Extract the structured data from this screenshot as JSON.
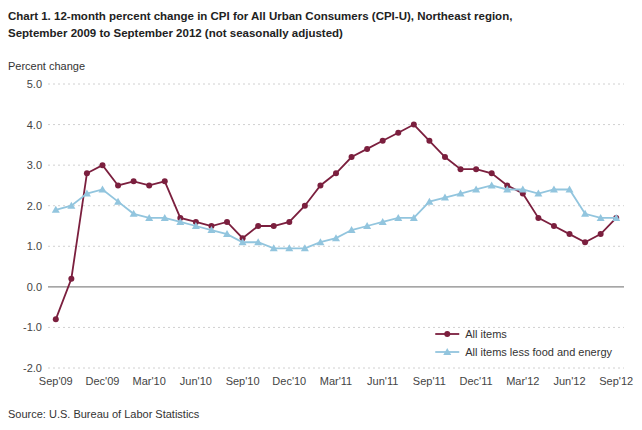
{
  "chart_data": {
    "type": "line",
    "title": "Chart 1. 12-month percent change in CPI for All Urban Consumers (CPI-U), Northeast region,",
    "subtitle": "September 2009 to September 2012 (not seasonally adjusted)",
    "y_label": "Percent change",
    "annotations": [
      "Source: U.S. Bureau of Labor Statistics"
    ],
    "categories": [
      "Sep'09",
      null,
      null,
      "Dec'09",
      null,
      null,
      "Mar'10",
      null,
      null,
      "Jun'10",
      null,
      null,
      "Sep'10",
      null,
      null,
      "Dec'10",
      null,
      null,
      "Mar'11",
      null,
      null,
      "Jun'11",
      null,
      null,
      "Sep'11",
      null,
      null,
      "Dec'11",
      null,
      null,
      "Mar'12",
      null,
      null,
      "Jun'12",
      null,
      null,
      "Sep'12"
    ],
    "series": [
      {
        "name": "All items",
        "color": "#7B1F3E",
        "marker": "circle",
        "values": [
          -0.8,
          0.2,
          2.8,
          3.0,
          2.5,
          2.6,
          2.5,
          2.6,
          1.7,
          1.6,
          1.5,
          1.6,
          1.2,
          1.5,
          1.5,
          1.6,
          2.0,
          2.5,
          2.8,
          3.2,
          3.4,
          3.6,
          3.8,
          4.0,
          3.6,
          3.2,
          2.9,
          2.9,
          2.8,
          2.5,
          2.3,
          1.7,
          1.5,
          1.3,
          1.1,
          1.3,
          1.7
        ]
      },
      {
        "name": "All items less food and energy",
        "color": "#92C5DE",
        "marker": "triangle",
        "values": [
          1.9,
          2.0,
          2.3,
          2.4,
          2.1,
          1.8,
          1.7,
          1.7,
          1.6,
          1.5,
          1.4,
          1.3,
          1.1,
          1.1,
          0.95,
          0.95,
          0.95,
          1.1,
          1.2,
          1.4,
          1.5,
          1.6,
          1.7,
          1.7,
          2.1,
          2.2,
          2.3,
          2.4,
          2.5,
          2.4,
          2.4,
          2.3,
          2.4,
          2.4,
          1.8,
          1.7,
          1.7
        ]
      }
    ],
    "ylim": [
      -2.0,
      5.0
    ],
    "yticks": [
      {
        "value": -2.0,
        "label": "-2.0"
      },
      {
        "value": -1.0,
        "label": "-1.0"
      },
      {
        "value": 0.0,
        "label": "0.0"
      },
      {
        "value": 1.0,
        "label": "1.0"
      },
      {
        "value": 2.0,
        "label": "2.0"
      },
      {
        "value": 3.0,
        "label": "3.0"
      },
      {
        "value": 4.0,
        "label": "4.0"
      },
      {
        "value": 5.0,
        "label": "5.0"
      }
    ],
    "grid": true,
    "legend": "lower right"
  }
}
